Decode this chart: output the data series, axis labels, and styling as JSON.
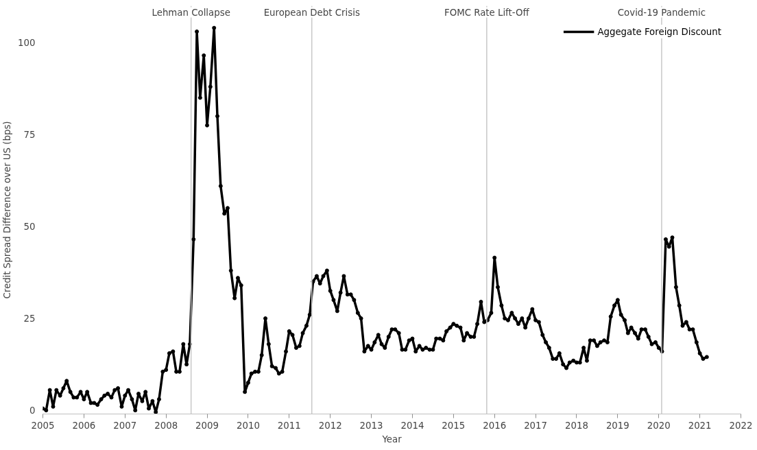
{
  "chart_data": {
    "type": "line",
    "xlabel": "Year",
    "ylabel": "Credit Spread Difference over US (bps)",
    "x": [
      2005.0,
      2005.08,
      2005.17,
      2005.25,
      2005.33,
      2005.42,
      2005.5,
      2005.58,
      2005.67,
      2005.75,
      2005.83,
      2005.92,
      2006.0,
      2006.08,
      2006.17,
      2006.25,
      2006.33,
      2006.42,
      2006.5,
      2006.58,
      2006.67,
      2006.75,
      2006.83,
      2006.92,
      2007.0,
      2007.08,
      2007.17,
      2007.25,
      2007.33,
      2007.42,
      2007.5,
      2007.58,
      2007.67,
      2007.75,
      2007.83,
      2007.92,
      2008.0,
      2008.08,
      2008.17,
      2008.25,
      2008.33,
      2008.42,
      2008.5,
      2008.58,
      2008.67,
      2008.75,
      2008.83,
      2008.92,
      2009.0,
      2009.08,
      2009.17,
      2009.25,
      2009.33,
      2009.42,
      2009.5,
      2009.58,
      2009.67,
      2009.75,
      2009.83,
      2009.92,
      2010.0,
      2010.08,
      2010.17,
      2010.25,
      2010.33,
      2010.42,
      2010.5,
      2010.58,
      2010.67,
      2010.75,
      2010.83,
      2010.92,
      2011.0,
      2011.08,
      2011.17,
      2011.25,
      2011.33,
      2011.42,
      2011.5,
      2011.58,
      2011.67,
      2011.75,
      2011.83,
      2011.92,
      2012.0,
      2012.08,
      2012.17,
      2012.25,
      2012.33,
      2012.42,
      2012.5,
      2012.58,
      2012.67,
      2012.75,
      2012.83,
      2012.92,
      2013.0,
      2013.08,
      2013.17,
      2013.25,
      2013.33,
      2013.42,
      2013.5,
      2013.58,
      2013.67,
      2013.75,
      2013.83,
      2013.92,
      2014.0,
      2014.08,
      2014.17,
      2014.25,
      2014.33,
      2014.42,
      2014.5,
      2014.58,
      2014.67,
      2014.75,
      2014.83,
      2014.92,
      2015.0,
      2015.08,
      2015.17,
      2015.25,
      2015.33,
      2015.42,
      2015.5,
      2015.58,
      2015.67,
      2015.75,
      2015.83,
      2015.92,
      2016.0,
      2016.08,
      2016.17,
      2016.25,
      2016.33,
      2016.42,
      2016.5,
      2016.58,
      2016.67,
      2016.75,
      2016.83,
      2016.92,
      2017.0,
      2017.08,
      2017.17,
      2017.25,
      2017.33,
      2017.42,
      2017.5,
      2017.58,
      2017.67,
      2017.75,
      2017.83,
      2017.92,
      2018.0,
      2018.08,
      2018.17,
      2018.25,
      2018.33,
      2018.42,
      2018.5,
      2018.58,
      2018.67,
      2018.75,
      2018.83,
      2018.92,
      2019.0,
      2019.08,
      2019.17,
      2019.25,
      2019.33,
      2019.42,
      2019.5,
      2019.58,
      2019.67,
      2019.75,
      2019.83,
      2019.92,
      2020.0,
      2020.08,
      2020.17,
      2020.25,
      2020.33,
      2020.42,
      2020.5,
      2020.58,
      2020.67,
      2020.75,
      2020.83,
      2020.92,
      2021.0,
      2021.08,
      2021.17
    ],
    "series": [
      {
        "name": "Aggegate Foreign Discount",
        "color": "#000000",
        "values": [
          0.5,
          0,
          5.5,
          1,
          5.5,
          4,
          6,
          8,
          5,
          3.5,
          3.5,
          5,
          3,
          5,
          2,
          2,
          1.5,
          3,
          4,
          4.5,
          3.5,
          5.5,
          6,
          1,
          4,
          5.5,
          3,
          0,
          4.5,
          2.5,
          5,
          0.5,
          2.5,
          -0.5,
          3,
          10.5,
          11,
          15.5,
          16,
          10.5,
          10.5,
          18,
          12.5,
          18,
          46.5,
          103,
          85,
          96.5,
          77.5,
          88,
          104,
          80,
          61,
          53.5,
          55,
          38,
          30.5,
          36,
          34,
          5,
          7.5,
          10,
          10.5,
          10.5,
          15,
          25,
          18,
          12,
          11.5,
          10,
          10.5,
          16,
          21.5,
          20.5,
          17,
          17.5,
          21,
          23,
          26,
          35,
          36.5,
          34.5,
          36.5,
          38,
          32.5,
          30,
          27,
          32,
          36.5,
          31.5,
          31.5,
          30,
          26.5,
          25,
          16,
          17.5,
          16.5,
          18.5,
          20.5,
          18,
          17,
          20,
          22,
          22,
          21,
          16.5,
          16.5,
          19,
          19.5,
          16,
          17.5,
          16.5,
          17,
          16.5,
          16.5,
          19.5,
          19.5,
          19,
          21.5,
          22.5,
          23.5,
          23,
          22.5,
          19,
          21,
          20,
          20,
          23.5,
          29.5,
          24,
          24.5,
          26.5,
          41.5,
          33.5,
          28.5,
          25,
          24.5,
          26.5,
          25,
          23.5,
          25,
          22.5,
          25,
          27.5,
          24.5,
          24,
          20.5,
          18.5,
          17,
          14,
          14,
          15.5,
          12.5,
          11.5,
          13,
          13.5,
          13,
          13,
          17,
          13.5,
          19,
          19,
          17.5,
          18.5,
          19,
          18.5,
          25.5,
          28.5,
          30,
          26,
          24.5,
          21,
          22.5,
          21,
          19.5,
          22,
          22,
          20,
          18,
          18.5,
          17,
          16,
          46.5,
          44.5,
          47,
          33.5,
          28.5,
          23,
          24,
          22,
          22,
          18.5,
          15.5,
          14,
          14.5
        ]
      }
    ],
    "xlim": [
      2005,
      2022
    ],
    "xticks": [
      2005,
      2006,
      2007,
      2008,
      2009,
      2010,
      2011,
      2012,
      2013,
      2014,
      2015,
      2016,
      2017,
      2018,
      2019,
      2020,
      2021,
      2022
    ],
    "ylim": [
      -1,
      110
    ],
    "yticks": [
      0,
      25,
      50,
      75,
      100
    ],
    "ref_lines": [
      {
        "axis": "x",
        "value": 2008.61,
        "label": "Lehman Collapse",
        "color": "#c8c8c8"
      },
      {
        "axis": "x",
        "value": 2011.55,
        "label": "European Debt Crisis",
        "color": "#c8c8c8"
      },
      {
        "axis": "x",
        "value": 2015.81,
        "label": "FOMC Rate Lift-Off",
        "color": "#c8c8c8"
      },
      {
        "axis": "x",
        "value": 2020.07,
        "label": "Covid-19 Pandemic",
        "color": "#c8c8c8"
      }
    ],
    "grid": false,
    "legend": "top right",
    "marker": "circle",
    "line_style": "solid"
  }
}
